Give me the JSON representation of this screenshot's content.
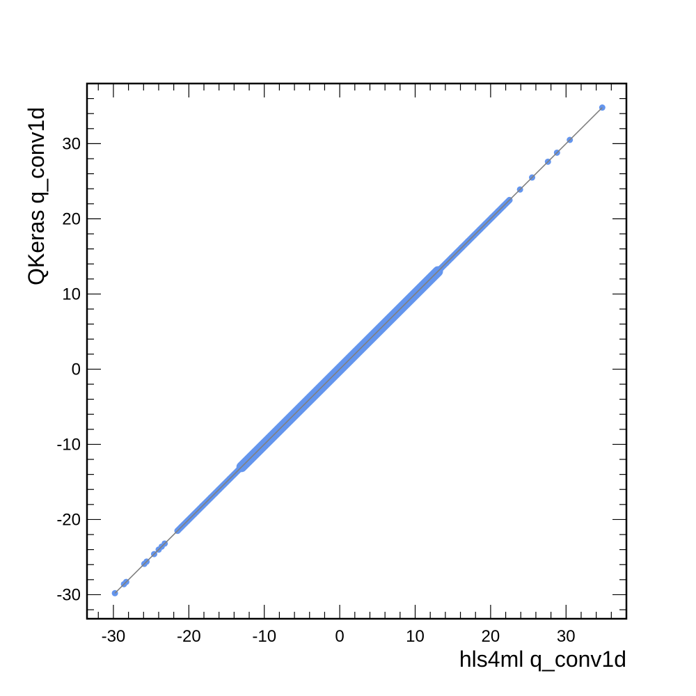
{
  "chart_data": {
    "type": "scatter",
    "title": "",
    "xlabel": "hls4ml q_conv1d",
    "ylabel": "QKeras q_conv1d",
    "xlim": [
      -33.5,
      38.0
    ],
    "ylim": [
      -33.2,
      38.0
    ],
    "xticks": [
      -30,
      -20,
      -10,
      0,
      10,
      20,
      30
    ],
    "xtick_labels": [
      "-30",
      "-20",
      "-10",
      "0",
      "10",
      "20",
      "30"
    ],
    "yticks": [
      -30,
      -20,
      -10,
      0,
      10,
      20,
      30
    ],
    "ytick_labels": [
      "-30",
      "-20",
      "-10",
      "0",
      "10",
      "20",
      "30"
    ],
    "grid": false,
    "legend": "none",
    "colors": {
      "points": "#6495ED",
      "reference_line": "#808080",
      "frame": "#000000"
    },
    "reference_line": {
      "x": [
        -29.8,
        34.8
      ],
      "y": [
        -29.8,
        34.8
      ]
    },
    "series": [
      {
        "x": [
          -29.8,
          -28.6,
          -28.3,
          -25.9,
          -25.6,
          -24.6,
          -24.0,
          -23.6,
          -23.2,
          -21.5,
          -21.0,
          -20.2,
          -19.3,
          -18.2,
          -17.1,
          -16.5,
          -16.0,
          -15.4,
          -14.6,
          -14.0,
          -13.5,
          -12.8,
          -12.2,
          -11.5,
          -10.8,
          -10.2,
          -9.6,
          -9.0,
          -8.4,
          -7.8,
          -7.2,
          -6.6,
          -6.0,
          -5.4,
          -4.8,
          -4.2,
          -3.6,
          -3.0,
          -2.4,
          -1.8,
          -1.2,
          -0.6,
          0.0,
          0.6,
          1.2,
          1.8,
          2.4,
          3.0,
          3.6,
          4.2,
          4.8,
          5.4,
          6.0,
          6.6,
          7.2,
          7.8,
          8.4,
          9.0,
          9.6,
          10.2,
          10.8,
          11.5,
          12.2,
          12.8,
          13.4,
          14.1,
          14.8,
          15.5,
          16.2,
          17.0,
          17.8,
          18.6,
          19.3,
          20.2,
          21.0,
          21.7,
          22.5,
          23.9,
          25.5,
          27.6,
          28.8,
          30.5,
          34.8
        ],
        "y": [
          -29.8,
          -28.6,
          -28.3,
          -25.9,
          -25.6,
          -24.6,
          -24.0,
          -23.6,
          -23.2,
          -21.5,
          -21.0,
          -20.2,
          -19.3,
          -18.2,
          -17.1,
          -16.5,
          -16.0,
          -15.4,
          -14.6,
          -14.0,
          -13.5,
          -12.8,
          -12.2,
          -11.5,
          -10.8,
          -10.2,
          -9.6,
          -9.0,
          -8.4,
          -7.8,
          -7.2,
          -6.6,
          -6.0,
          -5.4,
          -4.8,
          -4.2,
          -3.6,
          -3.0,
          -2.4,
          -1.8,
          -1.2,
          -0.6,
          0.0,
          0.6,
          1.2,
          1.8,
          2.4,
          3.0,
          3.6,
          4.2,
          4.8,
          5.4,
          6.0,
          6.6,
          7.2,
          7.8,
          8.4,
          9.0,
          9.6,
          10.2,
          10.8,
          11.5,
          12.2,
          12.8,
          13.4,
          14.1,
          14.8,
          15.5,
          16.2,
          17.0,
          17.8,
          18.6,
          19.3,
          20.2,
          21.0,
          21.7,
          22.5,
          23.9,
          25.5,
          27.6,
          28.8,
          30.5,
          34.8
        ]
      }
    ]
  }
}
